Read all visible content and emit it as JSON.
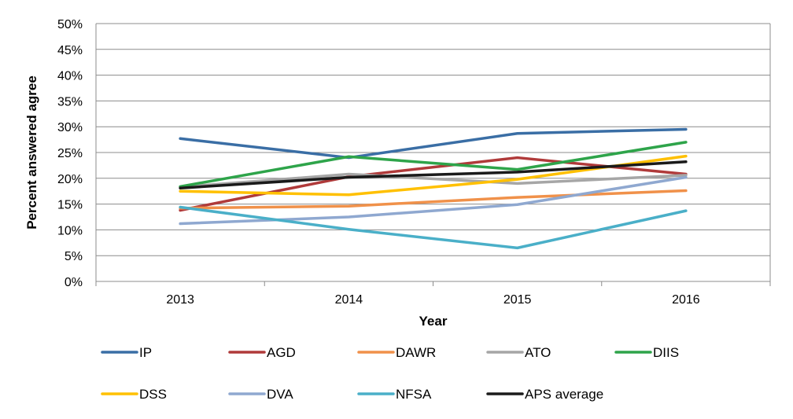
{
  "chart_data": {
    "type": "line",
    "title": "",
    "xlabel": "Year",
    "ylabel": "Percent answered agree",
    "categories": [
      "2013",
      "2014",
      "2015",
      "2016"
    ],
    "ylim": [
      0,
      50
    ],
    "y_ticks": [
      "0%",
      "5%",
      "10%",
      "15%",
      "20%",
      "25%",
      "30%",
      "35%",
      "40%",
      "45%",
      "50%"
    ],
    "grid": "horizontal",
    "legend_position": "bottom",
    "series": [
      {
        "name": "IP",
        "color": "#3a6ea5",
        "values": [
          27.7,
          24.0,
          28.7,
          29.5
        ]
      },
      {
        "name": "AGD",
        "color": "#b03a3a",
        "values": [
          13.8,
          20.3,
          24.0,
          20.8
        ]
      },
      {
        "name": "DAWR",
        "color": "#f0914a",
        "values": [
          14.2,
          14.6,
          16.3,
          17.6
        ]
      },
      {
        "name": "ATO",
        "color": "#a6a6a6",
        "values": [
          18.3,
          20.8,
          19.0,
          20.6
        ]
      },
      {
        "name": "DIIS",
        "color": "#2ea44a",
        "values": [
          18.4,
          24.2,
          21.7,
          27.0
        ]
      },
      {
        "name": "DSS",
        "color": "#ffc000",
        "values": [
          17.5,
          16.8,
          19.8,
          24.3
        ]
      },
      {
        "name": "DVA",
        "color": "#8fa8d0",
        "values": [
          11.2,
          12.5,
          14.9,
          20.2
        ]
      },
      {
        "name": "NFSA",
        "color": "#4aafc8",
        "values": [
          14.4,
          10.1,
          6.5,
          13.7
        ]
      },
      {
        "name": "APS average",
        "color": "#1a1a1a",
        "values": [
          18.1,
          20.2,
          21.2,
          23.2
        ]
      }
    ]
  }
}
